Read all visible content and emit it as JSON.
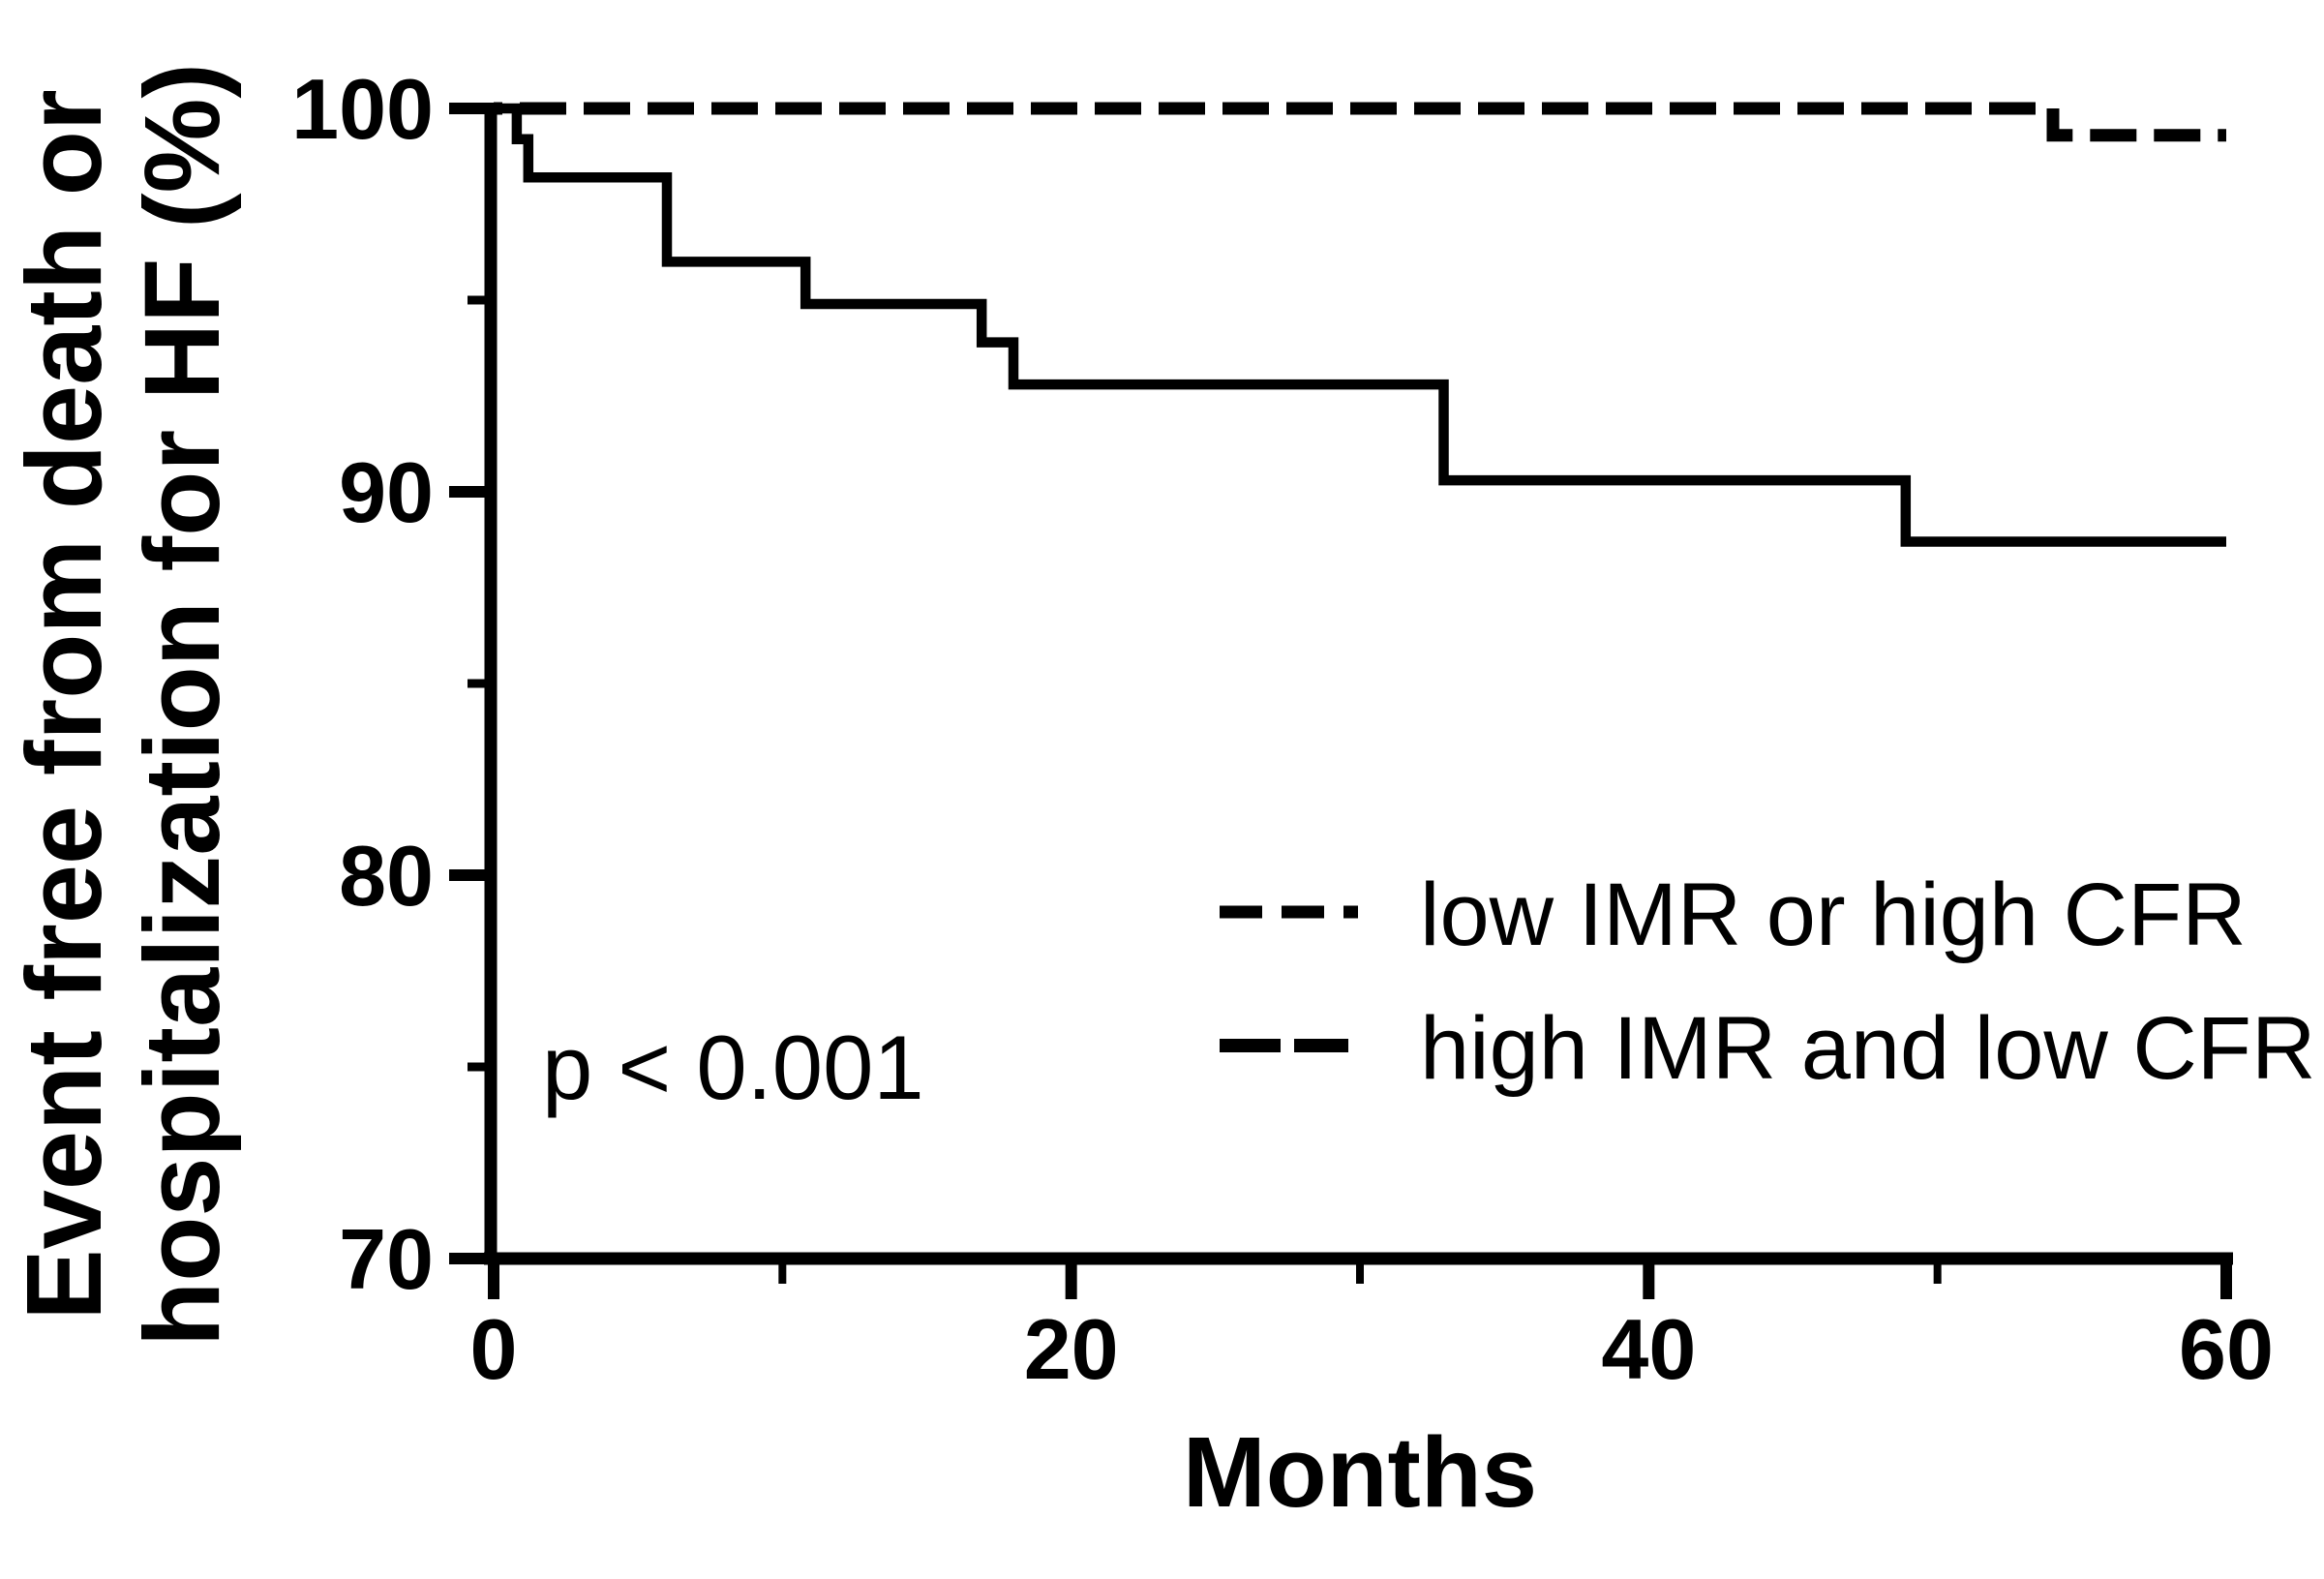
{
  "colors": {
    "ink": "#000000",
    "background": "#ffffff"
  },
  "chart_data": {
    "type": "line",
    "subtype": "kaplan-meier-step",
    "title": "",
    "xlabel": "Months",
    "ylabel_lines": [
      "Event free from death or",
      "hospitalization for HF (%)"
    ],
    "xlim": [
      0,
      60
    ],
    "ylim": [
      70,
      100
    ],
    "x_major_ticks": [
      0,
      20,
      40,
      60
    ],
    "x_minor_ticks": [
      10,
      30,
      50
    ],
    "y_major_ticks": [
      100,
      90,
      80,
      70
    ],
    "y_minor_ticks": [
      95,
      85,
      75
    ],
    "grid": false,
    "annotation": "p < 0.001",
    "legend_position": "center-right",
    "series": [
      {
        "name": "low IMR or high CFR",
        "line_style": "dashed",
        "points": [
          [
            0,
            100
          ],
          [
            54,
            100
          ],
          [
            54,
            99.3
          ],
          [
            60,
            99.3
          ]
        ]
      },
      {
        "name": "high IMR and low CFR",
        "line_style": "solid",
        "points": [
          [
            0,
            100
          ],
          [
            0.8,
            100
          ],
          [
            0.8,
            99.2
          ],
          [
            1.2,
            99.2
          ],
          [
            1.2,
            98.2
          ],
          [
            6,
            98.2
          ],
          [
            6,
            96.0
          ],
          [
            10.8,
            96.0
          ],
          [
            10.8,
            94.9
          ],
          [
            16.9,
            94.9
          ],
          [
            16.9,
            93.9
          ],
          [
            18,
            93.9
          ],
          [
            18,
            92.8
          ],
          [
            32.9,
            92.8
          ],
          [
            32.9,
            90.3
          ],
          [
            48.9,
            90.3
          ],
          [
            48.9,
            88.7
          ],
          [
            60,
            88.7
          ]
        ]
      }
    ],
    "legend": [
      {
        "label": "low IMR or high CFR",
        "sample_style": "dashed"
      },
      {
        "label": "high IMR and low CFR",
        "sample_style": "long-dash"
      }
    ]
  }
}
